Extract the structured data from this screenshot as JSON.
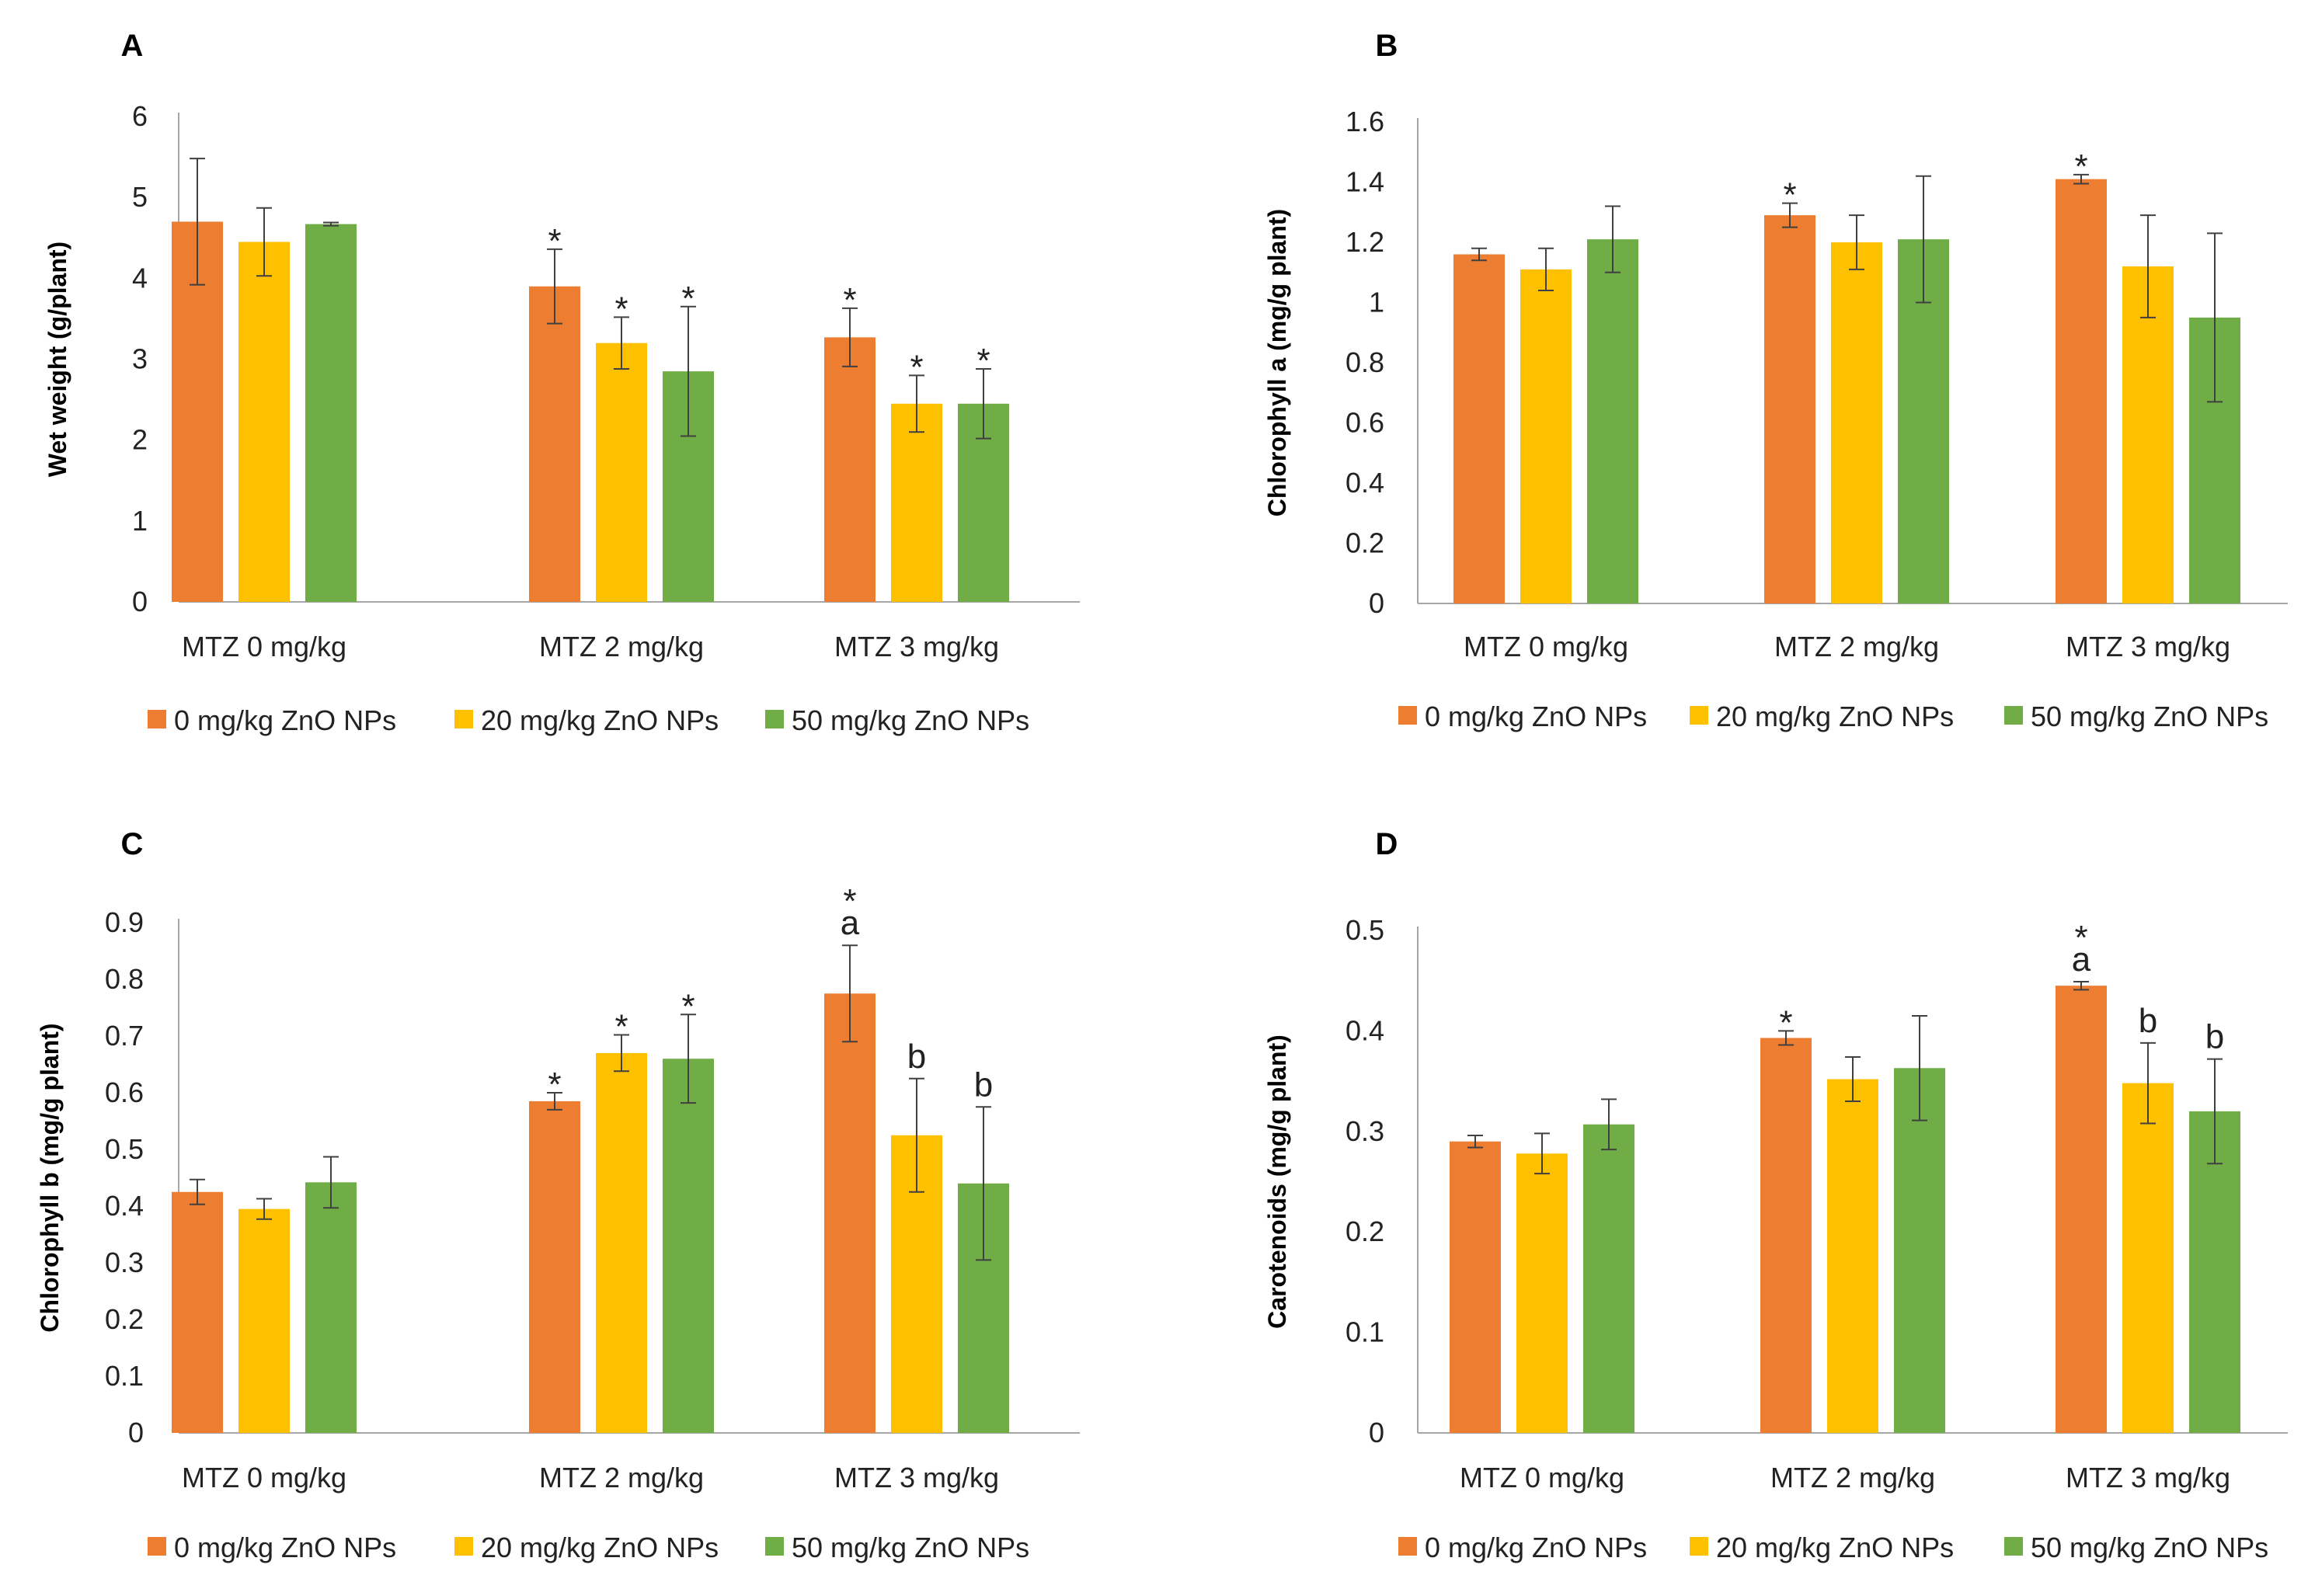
{
  "colors": {
    "s0": "#ED7D31",
    "s1": "#FFC000",
    "s2": "#70AD47",
    "axis": "#A6A6A6",
    "err": "#404040"
  },
  "chart_data": [
    {
      "type": "bar",
      "panel": "A",
      "title": "",
      "ylabel": "Wet weight (g/plant)",
      "xlabel": "",
      "ylim": [
        0,
        6
      ],
      "yticks": [
        "0",
        "1",
        "2",
        "3",
        "4",
        "5",
        "6"
      ],
      "categories": [
        "MTZ 0 mg/kg",
        "MTZ 2 mg/kg",
        "MTZ 3 mg/kg"
      ],
      "legend_position": "bottom",
      "series": [
        {
          "name": "0 mg/kg ZnO NPs",
          "values": [
            4.7,
            3.9,
            3.27
          ],
          "errors": [
            0.78,
            0.46,
            0.36
          ],
          "annotations": [
            "",
            "*",
            "*"
          ]
        },
        {
          "name": "20 mg/kg ZnO NPs",
          "values": [
            4.45,
            3.2,
            2.45
          ],
          "errors": [
            0.42,
            0.32,
            0.35
          ],
          "annotations": [
            "",
            "*",
            "*"
          ]
        },
        {
          "name": "50 mg/kg ZnO NPs",
          "values": [
            4.67,
            2.85,
            2.45
          ],
          "errors": [
            0.02,
            0.8,
            0.43
          ],
          "annotations": [
            "",
            "*",
            "*"
          ]
        }
      ]
    },
    {
      "type": "bar",
      "panel": "B",
      "title": "",
      "ylabel": "Chlorophyll a (mg/g plant)",
      "xlabel": "",
      "ylim": [
        0,
        1.6
      ],
      "yticks": [
        "0",
        "0.2",
        "0.4",
        "0.6",
        "0.8",
        "1",
        "1.2",
        "1.4",
        "1.6"
      ],
      "categories": [
        "MTZ 0 mg/kg",
        "MTZ 2 mg/kg",
        "MTZ 3 mg/kg"
      ],
      "legend_position": "bottom",
      "series": [
        {
          "name": "0 mg/kg ZnO NPs",
          "values": [
            1.16,
            1.29,
            1.41
          ],
          "errors": [
            0.02,
            0.04,
            0.015
          ],
          "annotations": [
            "",
            "*",
            "*"
          ]
        },
        {
          "name": "20 mg/kg ZnO NPs",
          "values": [
            1.11,
            1.2,
            1.12
          ],
          "errors": [
            0.07,
            0.09,
            0.17
          ],
          "annotations": [
            "",
            "",
            ""
          ]
        },
        {
          "name": "50 mg/kg ZnO NPs",
          "values": [
            1.21,
            1.21,
            0.95
          ],
          "errors": [
            0.11,
            0.21,
            0.28
          ],
          "annotations": [
            "",
            "",
            ""
          ]
        }
      ]
    },
    {
      "type": "bar",
      "panel": "C",
      "title": "",
      "ylabel": "Chlorophyll b (mg/g plant)",
      "xlabel": "",
      "ylim": [
        0,
        0.9
      ],
      "yticks": [
        "0",
        "0.1",
        "0.2",
        "0.3",
        "0.4",
        "0.5",
        "0.6",
        "0.7",
        "0.8",
        "0.9"
      ],
      "categories": [
        "MTZ 0 mg/kg",
        "MTZ 2 mg/kg",
        "MTZ 3 mg/kg"
      ],
      "legend_position": "bottom",
      "series": [
        {
          "name": "0 mg/kg ZnO NPs",
          "values": [
            0.425,
            0.585,
            0.775
          ],
          "errors": [
            0.022,
            0.015,
            0.085
          ],
          "annotations": [
            "",
            "*",
            "* a"
          ]
        },
        {
          "name": "20 mg/kg ZnO NPs",
          "values": [
            0.395,
            0.67,
            0.525
          ],
          "errors": [
            0.018,
            0.032,
            0.1
          ],
          "annotations": [
            "",
            "*",
            "b"
          ]
        },
        {
          "name": "50 mg/kg ZnO NPs",
          "values": [
            0.442,
            0.66,
            0.44
          ],
          "errors": [
            0.045,
            0.078,
            0.135
          ],
          "annotations": [
            "",
            "*",
            "b"
          ]
        }
      ]
    },
    {
      "type": "bar",
      "panel": "D",
      "title": "",
      "ylabel": "Carotenoids (mg/g plant)",
      "xlabel": "",
      "ylim": [
        0,
        0.5
      ],
      "yticks": [
        "0",
        "0.1",
        "0.2",
        "0.3",
        "0.4",
        "0.5"
      ],
      "categories": [
        "MTZ 0 mg/kg",
        "MTZ 2 mg/kg",
        "MTZ 3 mg/kg"
      ],
      "legend_position": "bottom",
      "series": [
        {
          "name": "0 mg/kg ZnO NPs",
          "values": [
            0.29,
            0.393,
            0.445
          ],
          "errors": [
            0.006,
            0.007,
            0.004
          ],
          "annotations": [
            "",
            "*",
            "* a"
          ]
        },
        {
          "name": "20 mg/kg ZnO NPs",
          "values": [
            0.278,
            0.352,
            0.348
          ],
          "errors": [
            0.02,
            0.022,
            0.04
          ],
          "annotations": [
            "",
            "",
            "b"
          ]
        },
        {
          "name": "50 mg/kg ZnO NPs",
          "values": [
            0.307,
            0.363,
            0.32
          ],
          "errors": [
            0.025,
            0.052,
            0.052
          ],
          "annotations": [
            "",
            "",
            "b"
          ]
        }
      ]
    }
  ]
}
